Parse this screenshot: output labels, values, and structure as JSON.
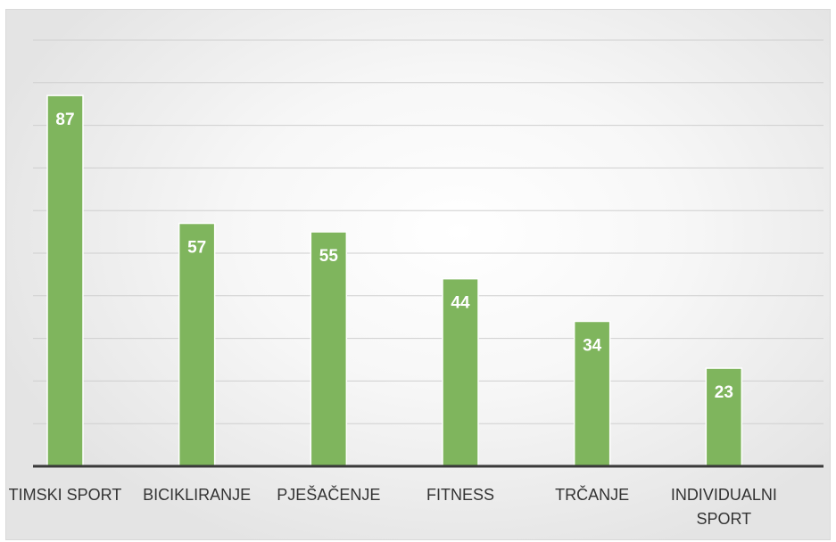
{
  "chart_data": {
    "type": "bar",
    "title": "",
    "xlabel": "",
    "ylabel": "",
    "categories": [
      "TIMSKI SPORT",
      "BICIKLIRANJE",
      "PJEŠAČENJE",
      "FITNESS",
      "TRČANJE",
      "INDIVIDUALNI SPORT"
    ],
    "category_lines": [
      [
        "TIMSKI SPORT"
      ],
      [
        "BICIKLIRANJE"
      ],
      [
        "PJEŠAČENJE"
      ],
      [
        "FITNESS"
      ],
      [
        "TRČANJE"
      ],
      [
        "INDIVIDUALNI",
        "SPORT"
      ]
    ],
    "values": [
      87,
      57,
      55,
      44,
      34,
      23
    ],
    "data_labels": [
      "87",
      "57",
      "55",
      "44",
      "34",
      "23"
    ],
    "ylim": [
      0,
      100
    ],
    "gridline_step": 10,
    "grid": true,
    "legend": "none",
    "colors": {
      "bar": "#7fb55d",
      "baseline": "#3a3a3a",
      "grid": "#cfcfcf"
    }
  }
}
